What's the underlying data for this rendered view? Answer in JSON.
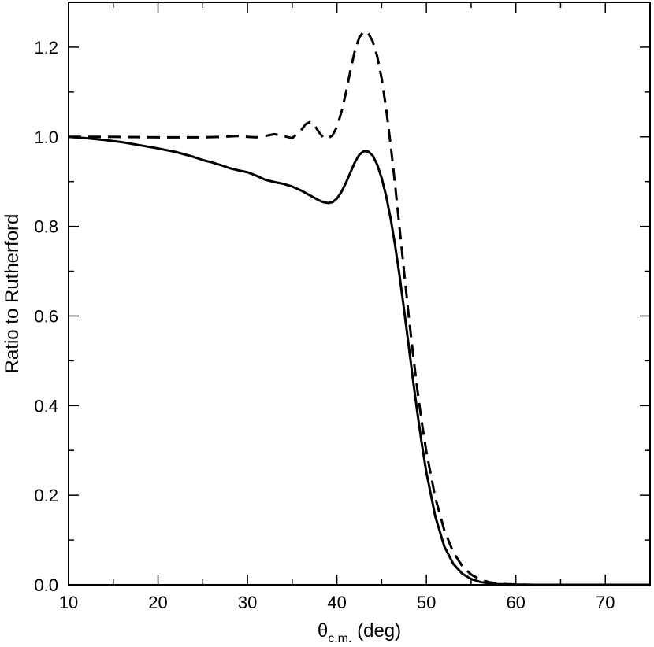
{
  "chart_data": {
    "type": "line",
    "xlabel": {
      "base": "θ",
      "sub": "c.m.",
      "rest": " (deg)"
    },
    "ylabel": "Ratio to Rutherford",
    "xlim": [
      10,
      75
    ],
    "ylim": [
      0.0,
      1.3
    ],
    "x_ticks": [
      10,
      20,
      30,
      40,
      50,
      60,
      70
    ],
    "x_tick_labels": [
      "10",
      "20",
      "30",
      "40",
      "50",
      "60",
      "70"
    ],
    "x_minor_step": 5,
    "y_ticks": [
      0.0,
      0.2,
      0.4,
      0.6,
      0.8,
      1.0,
      1.2
    ],
    "y_tick_labels": [
      "0.0",
      "0.2",
      "0.4",
      "0.6",
      "0.8",
      "1.0",
      "1.2"
    ],
    "y_minor_step": 0.1,
    "grid": false,
    "series": [
      {
        "style": "solid",
        "color": "#000000",
        "x": [
          10,
          12,
          14,
          16,
          18,
          20,
          22,
          24,
          25,
          26,
          27,
          28,
          29,
          30,
          31,
          32,
          33,
          34,
          35,
          36,
          37,
          38,
          38.5,
          39,
          39.5,
          40,
          40.5,
          41,
          41.5,
          42,
          42.5,
          43,
          43.5,
          44,
          44.5,
          45,
          45.5,
          46,
          46.5,
          47,
          47.5,
          48,
          48.5,
          49,
          49.5,
          50,
          51,
          52,
          53,
          54,
          55,
          56,
          57,
          58,
          59,
          60,
          61,
          62,
          63,
          64,
          66,
          68,
          70,
          72,
          75
        ],
        "y": [
          1.0,
          0.997,
          0.993,
          0.988,
          0.981,
          0.974,
          0.966,
          0.955,
          0.948,
          0.943,
          0.937,
          0.93,
          0.925,
          0.921,
          0.913,
          0.904,
          0.899,
          0.895,
          0.889,
          0.88,
          0.869,
          0.858,
          0.854,
          0.852,
          0.854,
          0.862,
          0.877,
          0.897,
          0.92,
          0.943,
          0.96,
          0.968,
          0.967,
          0.958,
          0.938,
          0.908,
          0.868,
          0.818,
          0.758,
          0.69,
          0.615,
          0.537,
          0.458,
          0.383,
          0.313,
          0.251,
          0.152,
          0.086,
          0.047,
          0.025,
          0.013,
          0.0065,
          0.0032,
          0.0016,
          0.0008,
          0.0004,
          0.0002,
          0.0001,
          0.0,
          0.0,
          0.0,
          0.0,
          0.0,
          0.0,
          0.0
        ]
      },
      {
        "style": "dashed",
        "color": "#000000",
        "x": [
          10,
          15,
          20,
          25,
          27,
          28,
          29,
          30,
          31,
          32,
          33,
          34,
          35,
          36,
          36.5,
          37,
          37.5,
          38,
          38.5,
          39,
          39.5,
          40,
          40.5,
          41,
          41.5,
          42,
          42.5,
          43,
          43.5,
          44,
          44.5,
          45,
          45.5,
          46,
          46.5,
          47,
          47.5,
          48,
          48.5,
          49,
          49.5,
          50,
          51,
          52,
          53,
          54,
          55,
          56,
          57,
          58,
          59,
          60,
          61,
          62,
          63,
          64,
          66,
          68,
          70,
          72,
          75
        ],
        "y": [
          1.0,
          1.0,
          0.999,
          0.999,
          1.0,
          1.001,
          1.002,
          1.0,
          0.999,
          1.002,
          1.006,
          1.002,
          0.997,
          1.015,
          1.028,
          1.033,
          1.025,
          1.01,
          0.998,
          0.997,
          1.003,
          1.022,
          1.055,
          1.098,
          1.147,
          1.192,
          1.222,
          1.235,
          1.231,
          1.213,
          1.18,
          1.13,
          1.063,
          0.983,
          0.893,
          0.797,
          0.7,
          0.605,
          0.516,
          0.434,
          0.361,
          0.297,
          0.194,
          0.122,
          0.073,
          0.042,
          0.023,
          0.012,
          0.006,
          0.003,
          0.0015,
          0.0007,
          0.0003,
          0.0001,
          0.0,
          0.0,
          0.0,
          0.0,
          0.0,
          0.0,
          0.0
        ]
      }
    ]
  }
}
